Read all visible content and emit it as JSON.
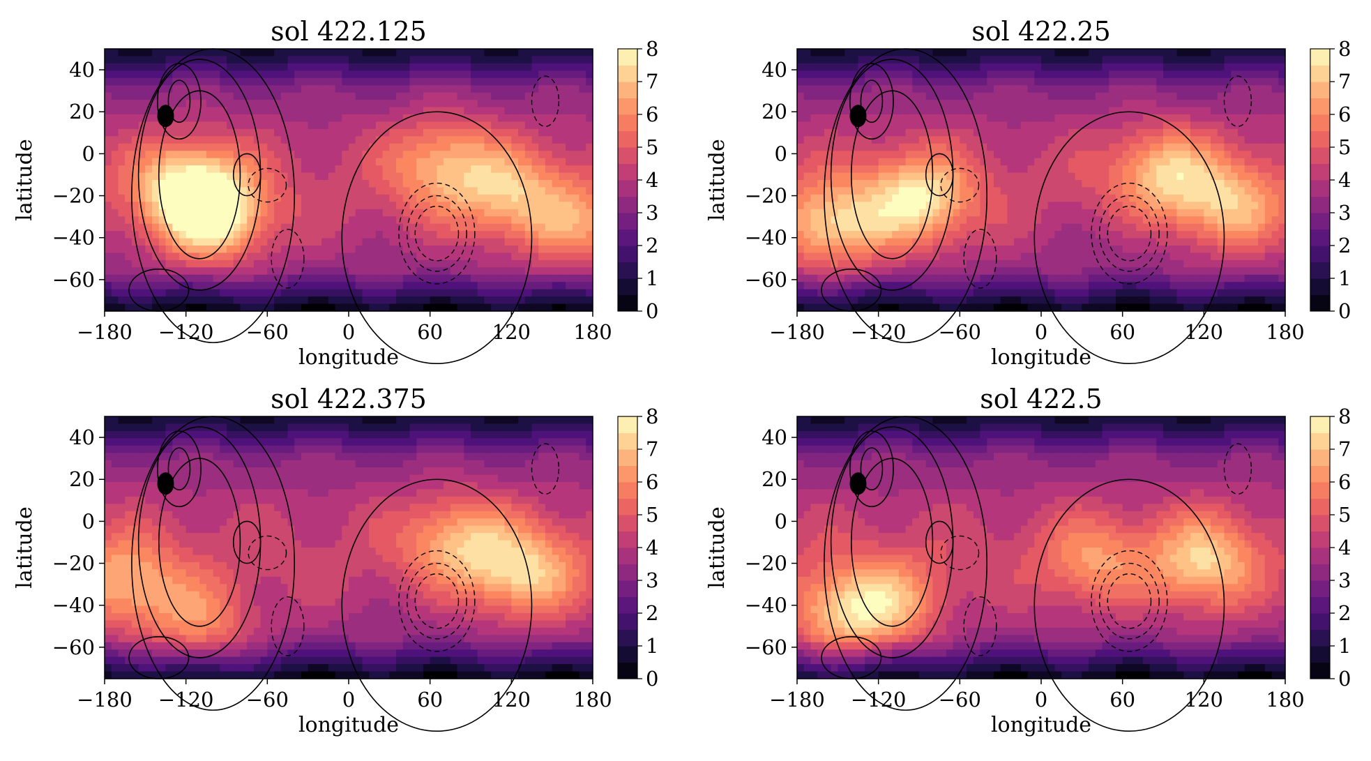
{
  "chart_data": [
    {
      "type": "heatmap",
      "title": "sol 422.125",
      "xlabel": "longitude",
      "ylabel": "latitude",
      "xlim": [
        -180,
        180
      ],
      "ylim": [
        -75,
        50
      ],
      "xticks": [
        "−180",
        "−120",
        "−60",
        "0",
        "60",
        "120",
        "180"
      ],
      "yticks": [
        "40",
        "20",
        "0",
        "−20",
        "−40",
        "−60"
      ],
      "colorbar": {
        "min": 0,
        "max": 8,
        "ticks": [
          "0",
          "1",
          "2",
          "3",
          "4",
          "5",
          "6",
          "7",
          "8"
        ]
      },
      "hotspots": [
        {
          "lon": -100,
          "lat": -30,
          "value": 7.8
        },
        {
          "lon": -120,
          "lat": -15,
          "value": 7.0
        },
        {
          "lon": 70,
          "lat": -5,
          "value": 6.5
        },
        {
          "lon": 120,
          "lat": -20,
          "value": 6.4
        },
        {
          "lon": 170,
          "lat": -35,
          "value": 6.0
        },
        {
          "lon": 65,
          "lat": -40,
          "value": 4.0
        }
      ]
    },
    {
      "type": "heatmap",
      "title": "sol 422.25",
      "xlabel": "longitude",
      "ylabel": "latitude",
      "xlim": [
        -180,
        180
      ],
      "ylim": [
        -75,
        50
      ],
      "xticks": [
        "−180",
        "−120",
        "−60",
        "0",
        "60",
        "120",
        "180"
      ],
      "yticks": [
        "40",
        "20",
        "0",
        "−20",
        "−40",
        "−60"
      ],
      "colorbar": {
        "min": 0,
        "max": 8,
        "ticks": [
          "0",
          "1",
          "2",
          "3",
          "4",
          "5",
          "6",
          "7",
          "8"
        ]
      },
      "hotspots": [
        {
          "lon": -90,
          "lat": -22,
          "value": 7.5
        },
        {
          "lon": -155,
          "lat": -35,
          "value": 7.2
        },
        {
          "lon": 90,
          "lat": -10,
          "value": 6.8
        },
        {
          "lon": 140,
          "lat": -25,
          "value": 6.6
        },
        {
          "lon": 65,
          "lat": -40,
          "value": 3.6
        }
      ]
    },
    {
      "type": "heatmap",
      "title": "sol 422.375",
      "xlabel": "longitude",
      "ylabel": "latitude",
      "xlim": [
        -180,
        180
      ],
      "ylim": [
        -75,
        50
      ],
      "xticks": [
        "−180",
        "−120",
        "−60",
        "0",
        "60",
        "120",
        "180"
      ],
      "yticks": [
        "40",
        "20",
        "0",
        "−20",
        "−40",
        "−60"
      ],
      "colorbar": {
        "min": 0,
        "max": 8,
        "ticks": [
          "0",
          "1",
          "2",
          "3",
          "4",
          "5",
          "6",
          "7",
          "8"
        ]
      },
      "hotspots": [
        {
          "lon": -165,
          "lat": -30,
          "value": 6.6
        },
        {
          "lon": -110,
          "lat": -50,
          "value": 6.2
        },
        {
          "lon": 80,
          "lat": -10,
          "value": 6.5
        },
        {
          "lon": 130,
          "lat": -25,
          "value": 7.0
        },
        {
          "lon": 65,
          "lat": -40,
          "value": 3.8
        }
      ]
    },
    {
      "type": "heatmap",
      "title": "sol 422.5",
      "xlabel": "longitude",
      "ylabel": "latitude",
      "xlim": [
        -180,
        180
      ],
      "ylim": [
        -75,
        50
      ],
      "xticks": [
        "−180",
        "−120",
        "−60",
        "0",
        "60",
        "120",
        "180"
      ],
      "yticks": [
        "40",
        "20",
        "0",
        "−20",
        "−40",
        "−60"
      ],
      "colorbar": {
        "min": 0,
        "max": 8,
        "ticks": [
          "0",
          "1",
          "2",
          "3",
          "4",
          "5",
          "6",
          "7",
          "8"
        ]
      },
      "hotspots": [
        {
          "lon": -150,
          "lat": -45,
          "value": 6.8
        },
        {
          "lon": -110,
          "lat": -40,
          "value": 6.4
        },
        {
          "lon": 120,
          "lat": -20,
          "value": 7.0
        },
        {
          "lon": 40,
          "lat": -20,
          "value": 6.0
        },
        {
          "lon": 65,
          "lat": -40,
          "value": 3.8
        }
      ]
    }
  ],
  "colors": {
    "magma_stops": [
      "#000004",
      "#1c1044",
      "#4f127b",
      "#812581",
      "#b5367a",
      "#e55964",
      "#fb8761",
      "#fec287",
      "#fcfdbf"
    ],
    "contour": "#000000"
  }
}
